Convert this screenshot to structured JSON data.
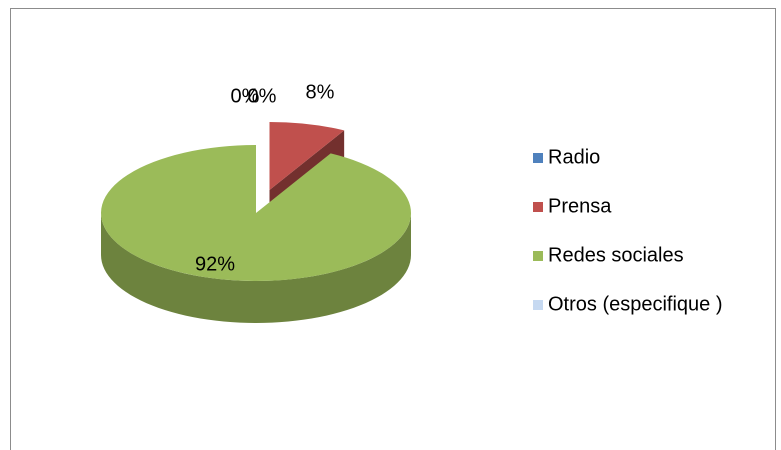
{
  "chart_data": {
    "type": "pie",
    "categories": [
      "Radio",
      "Prensa",
      "Redes sociales",
      "Otros (especifique )"
    ],
    "values": [
      0,
      8,
      92,
      0
    ],
    "value_labels": [
      "0%",
      "8%",
      "92%",
      "0%"
    ],
    "colors": [
      "#4f81bd",
      "#c0504d",
      "#9bbb59",
      "#c6d9f1"
    ],
    "legend": "right"
  }
}
